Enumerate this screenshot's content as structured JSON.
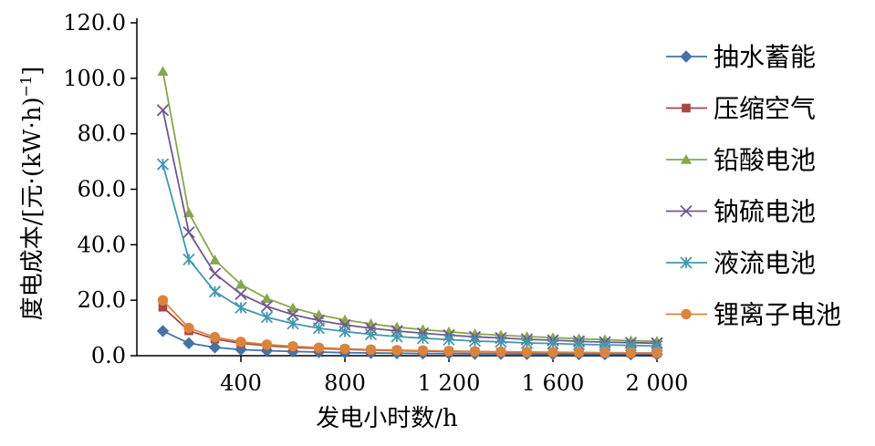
{
  "chart_data": {
    "type": "line",
    "title": "",
    "xlabel": "发电小时数/h",
    "ylabel": "度电成本/[元·(kW·h)",
    "ylabel_sup": "−1",
    "ylabel_tail": "]",
    "xlim": [
      0,
      2000
    ],
    "ylim": [
      0,
      120
    ],
    "x_ticks": [
      400,
      800,
      1200,
      1600,
      2000
    ],
    "x_tick_labels": [
      "400",
      "800",
      "1 200",
      "1 600",
      "2 000"
    ],
    "y_ticks": [
      0,
      20,
      40,
      60,
      80,
      100,
      120
    ],
    "y_tick_labels": [
      "0.0",
      "20.0",
      "40.0",
      "60.0",
      "80.0",
      "100.0",
      "120.0"
    ],
    "grid": false,
    "legend_position": "right",
    "x": [
      100,
      200,
      300,
      400,
      500,
      600,
      700,
      800,
      900,
      1000,
      1100,
      1200,
      1300,
      1400,
      1500,
      1600,
      1700,
      1800,
      1900,
      2000
    ],
    "series": [
      {
        "name": "抽水蓄能",
        "color": "#4572a7",
        "marker": "diamond",
        "values": [
          8.9,
          4.5,
          3.0,
          2.2,
          1.8,
          1.5,
          1.3,
          1.1,
          1.0,
          0.9,
          0.8,
          0.75,
          0.7,
          0.65,
          0.6,
          0.55,
          0.52,
          0.5,
          0.47,
          0.45
        ]
      },
      {
        "name": "压缩空气",
        "color": "#aa4643",
        "marker": "square",
        "values": [
          17.5,
          9.0,
          6.0,
          4.5,
          3.6,
          3.0,
          2.6,
          2.3,
          2.0,
          1.8,
          1.65,
          1.5,
          1.4,
          1.3,
          1.2,
          1.15,
          1.08,
          1.0,
          0.95,
          0.9
        ]
      },
      {
        "name": "铅酸电池",
        "color": "#89a54e",
        "marker": "triangle",
        "values": [
          102.5,
          51.5,
          34.5,
          25.7,
          20.6,
          17.2,
          14.7,
          12.9,
          11.5,
          10.3,
          9.4,
          8.6,
          7.9,
          7.4,
          6.9,
          6.5,
          6.1,
          5.8,
          5.4,
          5.2
        ]
      },
      {
        "name": "钠硫电池",
        "color": "#71588f",
        "marker": "x",
        "values": [
          88.5,
          44.5,
          29.6,
          22.2,
          17.8,
          14.8,
          12.7,
          11.1,
          9.9,
          8.9,
          8.1,
          7.4,
          6.8,
          6.4,
          5.9,
          5.6,
          5.2,
          4.9,
          4.7,
          4.5
        ]
      },
      {
        "name": "液流电池",
        "color": "#4198af",
        "marker": "star",
        "values": [
          69.0,
          34.7,
          23.1,
          17.3,
          13.9,
          11.6,
          9.9,
          8.7,
          7.7,
          6.9,
          6.3,
          5.8,
          5.3,
          5.0,
          4.6,
          4.4,
          4.1,
          3.9,
          3.7,
          3.5
        ]
      },
      {
        "name": "锂离子电池",
        "color": "#db843d",
        "marker": "circle",
        "values": [
          20.0,
          10.0,
          6.7,
          5.0,
          4.0,
          3.4,
          2.9,
          2.5,
          2.2,
          2.0,
          1.85,
          1.7,
          1.55,
          1.45,
          1.35,
          1.27,
          1.2,
          1.12,
          1.06,
          1.0
        ]
      }
    ]
  }
}
